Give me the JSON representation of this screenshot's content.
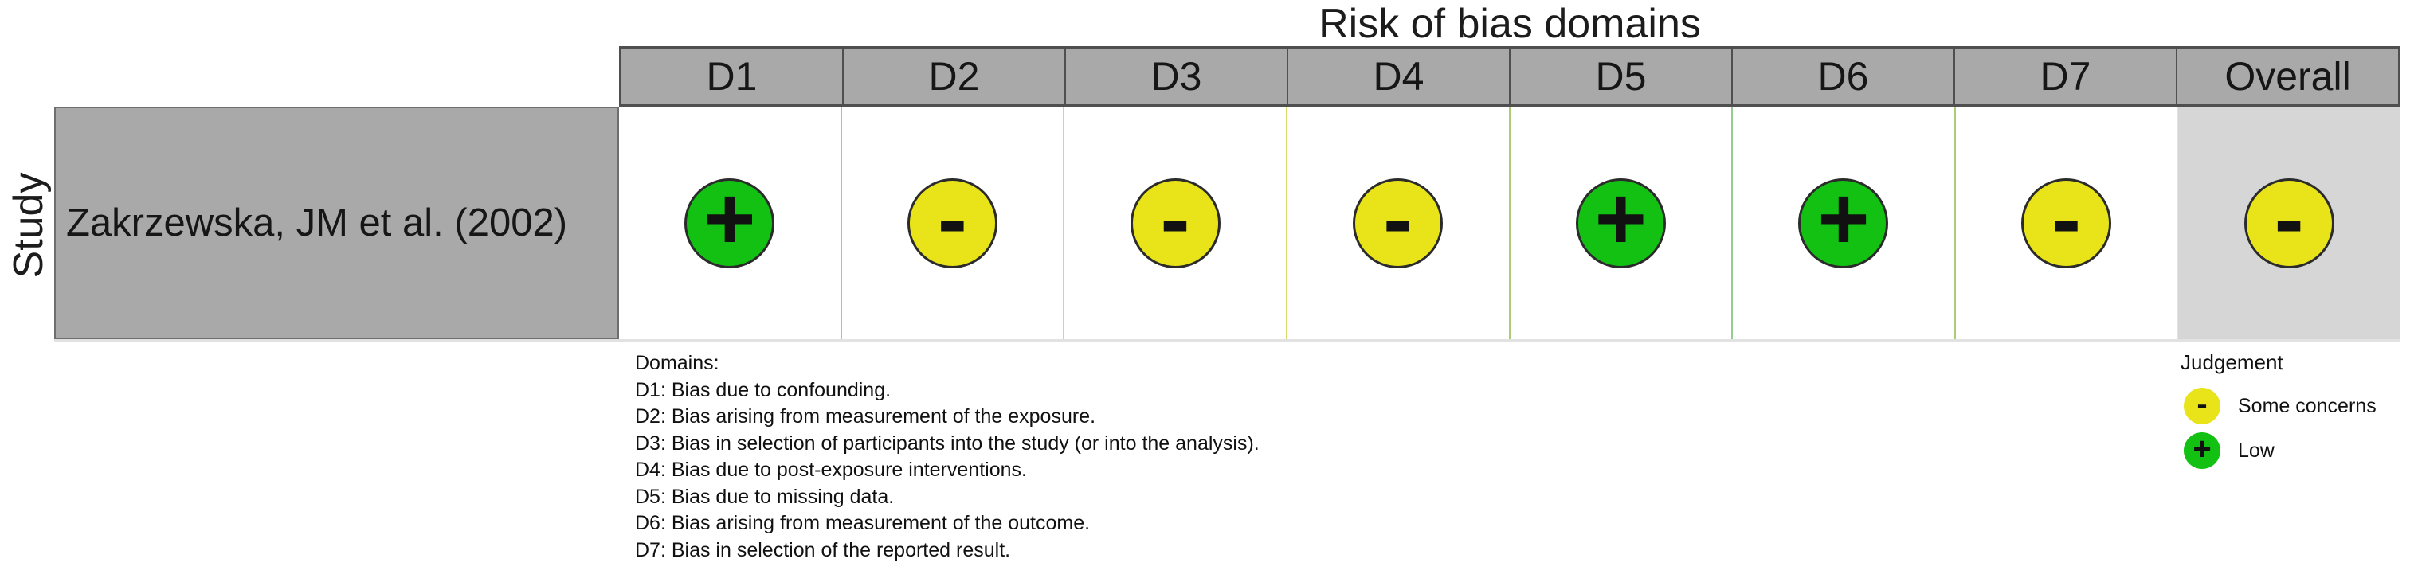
{
  "title": "Risk of bias domains",
  "y_axis_label": "Study",
  "colors": {
    "low_green": "#13c113",
    "some_concerns_yellow": "#e8e419",
    "header_gray": "#a9a9a9",
    "overall_cell_gray": "#d6d6d6",
    "circle_outline": "#2b2b2b"
  },
  "header": {
    "columns": [
      "D1",
      "D2",
      "D3",
      "D4",
      "D5",
      "D6",
      "D7",
      "Overall"
    ]
  },
  "row": {
    "study": "Zakrzewska, JM et al. (2002)",
    "cells": [
      {
        "domain": "D1",
        "judgement": "Low",
        "symbol": "+",
        "color": "#13c113"
      },
      {
        "domain": "D2",
        "judgement": "Some concerns",
        "symbol": "-",
        "color": "#e8e419"
      },
      {
        "domain": "D3",
        "judgement": "Some concerns",
        "symbol": "-",
        "color": "#e8e419"
      },
      {
        "domain": "D4",
        "judgement": "Some concerns",
        "symbol": "-",
        "color": "#e8e419"
      },
      {
        "domain": "D5",
        "judgement": "Low",
        "symbol": "+",
        "color": "#13c113"
      },
      {
        "domain": "D6",
        "judgement": "Low",
        "symbol": "+",
        "color": "#13c113"
      },
      {
        "domain": "D7",
        "judgement": "Some concerns",
        "symbol": "-",
        "color": "#e8e419"
      },
      {
        "domain": "Overall",
        "judgement": "Some concerns",
        "symbol": "-",
        "color": "#e8e419"
      }
    ]
  },
  "notes": {
    "heading": "Domains:",
    "lines": [
      "D1: Bias due to confounding.",
      "D2: Bias arising from measurement of the exposure.",
      "D3: Bias in selection of participants into the study (or into the analysis).",
      "D4: Bias due to post-exposure interventions.",
      "D5: Bias due to missing data.",
      "D6: Bias arising from measurement of the outcome.",
      "D7: Bias in selection of the reported result."
    ]
  },
  "legend": {
    "title": "Judgement",
    "items": [
      {
        "label": "Some concerns",
        "symbol": "-",
        "color": "#e8e419"
      },
      {
        "label": "Low",
        "symbol": "+",
        "color": "#13c113"
      }
    ]
  },
  "chart_data": {
    "type": "heatmap",
    "title": "Risk of bias domains",
    "x_categories": [
      "D1",
      "D2",
      "D3",
      "D4",
      "D5",
      "D6",
      "D7",
      "Overall"
    ],
    "y_categories": [
      "Zakrzewska, JM et al. (2002)"
    ],
    "ylabel": "Study",
    "values": [
      [
        "Low",
        "Some concerns",
        "Some concerns",
        "Some concerns",
        "Low",
        "Low",
        "Some concerns",
        "Some concerns"
      ]
    ],
    "value_encoding": {
      "Low": "green circle with +",
      "Some concerns": "yellow circle with -"
    },
    "legend_position": "bottom-right",
    "grid": false
  }
}
